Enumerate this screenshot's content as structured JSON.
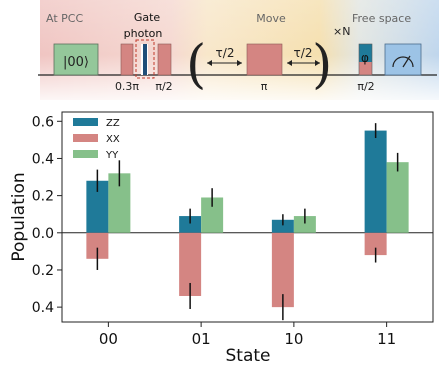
{
  "schematic": {
    "sections": [
      {
        "label": "At PCC",
        "color": "#e9b0ad"
      },
      {
        "label": "Move",
        "color": "#f1cf86"
      },
      {
        "label": "Free space",
        "color": "#c9dbee"
      }
    ],
    "gate_label_1": "Gate",
    "gate_label_2": "photon",
    "initial_state": "|00⟩",
    "pulse_03pi": "0.3π",
    "pulse_pi2_a": "π/2",
    "tau_left": "τ/2",
    "tau_right": "τ/2",
    "pulse_pi": "π",
    "repeat": "×N",
    "phase": "φ",
    "pulse_pi2_b": "π/2"
  },
  "chart_data": {
    "type": "bar",
    "categories": [
      "00",
      "01",
      "10",
      "11"
    ],
    "xlabel": "State",
    "ylabel": "Population",
    "ylim": [
      -0.48,
      0.65
    ],
    "ytick_values": [
      0.6,
      0.4,
      0.2,
      0.0,
      -0.2,
      -0.4
    ],
    "ytick_labels": [
      "0.6",
      "0.4",
      "0.2",
      "0.0",
      "0.2",
      "0.4"
    ],
    "legend_position": "top-left",
    "series": [
      {
        "name": "ZZ",
        "color": "#1f7a99",
        "values": [
          0.28,
          0.09,
          0.07,
          0.55
        ],
        "errors": [
          0.06,
          0.04,
          0.03,
          0.04
        ],
        "side": "positive"
      },
      {
        "name": "XX",
        "color": "#d48582",
        "values": [
          -0.14,
          -0.34,
          -0.4,
          -0.12
        ],
        "errors": [
          0.06,
          0.07,
          0.07,
          0.04
        ],
        "side": "negative"
      },
      {
        "name": "YY",
        "color": "#86c08a",
        "values": [
          0.32,
          0.19,
          0.09,
          0.38
        ],
        "errors": [
          0.07,
          0.05,
          0.04,
          0.05
        ],
        "side": "positive"
      }
    ]
  }
}
